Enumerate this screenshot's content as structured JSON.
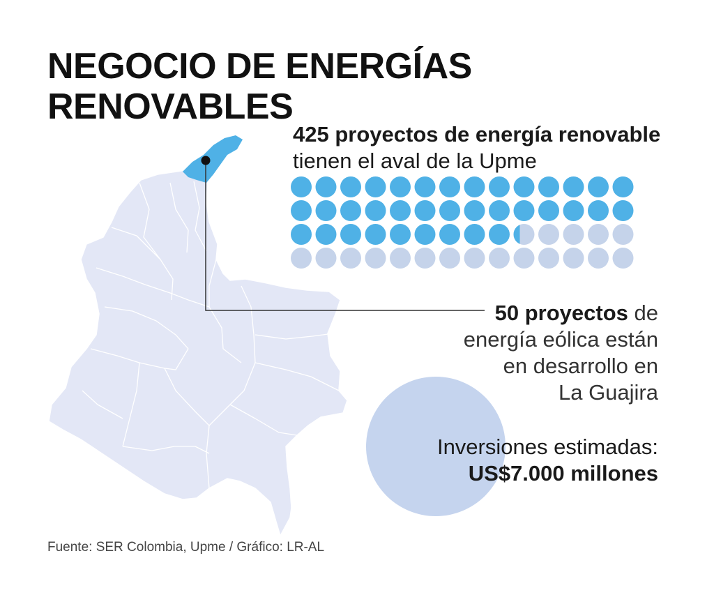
{
  "title": {
    "line1": "NEGOCIO DE ENERGÍAS",
    "line2": "RENOVABLES"
  },
  "stat_projects": {
    "bold": "425 proyectos de energía renovable",
    "rest": "tienen el aval de la Upme",
    "dot_grid": {
      "rows": 4,
      "cols": 14,
      "filled": 37.5,
      "filled_color": "#4fb1e6",
      "empty_color": "#c5d3ea"
    }
  },
  "stat_wind": {
    "bold": "50 proyectos",
    "rest_1": "de",
    "line2": "energía eólica están",
    "line3": "en desarrollo en",
    "line4": "La Guajira"
  },
  "investment": {
    "label": "Inversiones estimadas:",
    "amount": "US$7.000 millones",
    "circle_color": "#c5d4ee"
  },
  "source": "Fuente: SER Colombia, Upme / Gráfico: LR-AL",
  "map": {
    "fill_color": "#e3e7f6",
    "highlight_region": "La Guajira",
    "highlight_color": "#4fb1e6",
    "marker": "location-marker-icon"
  }
}
